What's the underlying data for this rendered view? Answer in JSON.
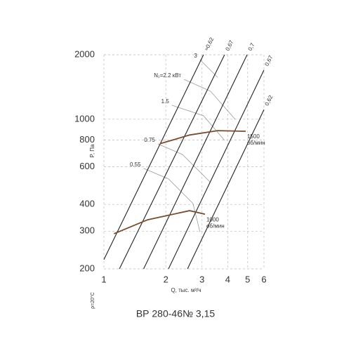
{
  "chart_data": {
    "type": "line",
    "title": "ВР 280-46№ 3,15",
    "x_label": "Q, тыс. м³/ч",
    "y_label": "P, Па",
    "note": "ρ=20°C",
    "log_x": true,
    "log_y": true,
    "grid": true,
    "xlim": [
      1,
      6
    ],
    "ylim": [
      200,
      2000
    ],
    "xticks": [
      1,
      2,
      3,
      4,
      5,
      6
    ],
    "yticks": [
      200,
      300,
      400,
      600,
      800,
      1000,
      2000
    ],
    "efficiency_lines": [
      {
        "name": "≈0,62",
        "color": "#222222",
        "x": [
          1,
          3.05
        ],
        "values": [
          221,
          2000
        ]
      },
      {
        "name": "0,67",
        "color": "#222222",
        "x": [
          1.19,
          3.86
        ],
        "values": [
          200,
          2000
        ]
      },
      {
        "name": "0,7",
        "color": "#222222",
        "x": [
          1.56,
          4.97
        ],
        "values": [
          200,
          2000
        ]
      },
      {
        "name": "0,67",
        "color": "#222222",
        "x": [
          2.06,
          6
        ],
        "values": [
          200,
          1697
        ]
      },
      {
        "name": "0,62",
        "color": "#222222",
        "x": [
          2.55,
          6
        ],
        "values": [
          200,
          1107
        ]
      }
    ],
    "speed_curves": [
      {
        "name": "1500",
        "unit": "об/мин",
        "color": "#7a4a2e",
        "x": [
          1.87,
          2.61,
          3.57,
          4.89
        ],
        "values": [
          768,
          844,
          884,
          878
        ]
      },
      {
        "name": "1000",
        "unit": "об/мин",
        "color": "#7a4a2e",
        "x": [
          1.12,
          1.63,
          2.61,
          3.1
        ],
        "values": [
          292,
          339,
          374,
          360
        ]
      }
    ],
    "power_curves": [
      {
        "name": "3",
        "color": "#9a9a9a",
        "x": [
          2.93,
          3.57
        ],
        "values": [
          1897,
          1570
        ]
      },
      {
        "name": "N₁=2.2 кВт",
        "color": "#9a9a9a",
        "x": [
          2.45,
          3.3,
          4.35
        ],
        "values": [
          1536,
          1352,
          998
        ]
      },
      {
        "name": "1.5",
        "color": "#9a9a9a",
        "x": [
          2.14,
          3.05,
          3.86
        ],
        "values": [
          1162,
          1038,
          796
        ]
      },
      {
        "name": "0.75",
        "color": "#9a9a9a",
        "x": [
          1.83,
          2.41,
          3.3
        ],
        "values": [
          767,
          684,
          506
        ]
      },
      {
        "name": "0.55",
        "color": "#9a9a9a",
        "x": [
          1.56,
          2.06,
          2.71,
          2.93
        ],
        "values": [
          589,
          526,
          404,
          298
        ]
      }
    ]
  }
}
